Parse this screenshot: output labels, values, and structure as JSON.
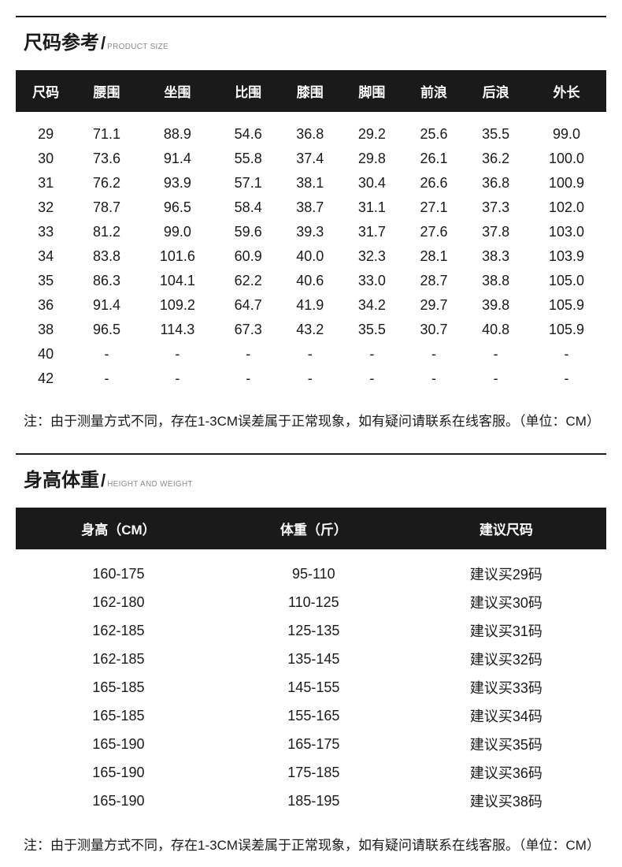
{
  "sizeSection": {
    "titleCn": "尺码参考",
    "titleEn": "PRODUCT SIZE",
    "columns": [
      "尺码",
      "腰围",
      "坐围",
      "比围",
      "膝围",
      "脚围",
      "前浪",
      "后浪",
      "外长"
    ],
    "rows": [
      [
        "29",
        "71.1",
        "88.9",
        "54.6",
        "36.8",
        "29.2",
        "25.6",
        "35.5",
        "99.0"
      ],
      [
        "30",
        "73.6",
        "91.4",
        "55.8",
        "37.4",
        "29.8",
        "26.1",
        "36.2",
        "100.0"
      ],
      [
        "31",
        "76.2",
        "93.9",
        "57.1",
        "38.1",
        "30.4",
        "26.6",
        "36.8",
        "100.9"
      ],
      [
        "32",
        "78.7",
        "96.5",
        "58.4",
        "38.7",
        "31.1",
        "27.1",
        "37.3",
        "102.0"
      ],
      [
        "33",
        "81.2",
        "99.0",
        "59.6",
        "39.3",
        "31.7",
        "27.6",
        "37.8",
        "103.0"
      ],
      [
        "34",
        "83.8",
        "101.6",
        "60.9",
        "40.0",
        "32.3",
        "28.1",
        "38.3",
        "103.9"
      ],
      [
        "35",
        "86.3",
        "104.1",
        "62.2",
        "40.6",
        "33.0",
        "28.7",
        "38.8",
        "105.0"
      ],
      [
        "36",
        "91.4",
        "109.2",
        "64.7",
        "41.9",
        "34.2",
        "29.7",
        "39.8",
        "105.9"
      ],
      [
        "38",
        "96.5",
        "114.3",
        "67.3",
        "43.2",
        "35.5",
        "30.7",
        "40.8",
        "105.9"
      ],
      [
        "40",
        "-",
        "-",
        "-",
        "-",
        "-",
        "-",
        "-",
        "-"
      ],
      [
        "42",
        "-",
        "-",
        "-",
        "-",
        "-",
        "-",
        "-",
        "-"
      ]
    ],
    "note": "注：由于测量方式不同，存在1-3CM误差属于正常现象，如有疑问请联系在线客服。（单位：CM）"
  },
  "hwSection": {
    "titleCn": "身高体重",
    "titleEn": "HEIGHT AND WEIGHT",
    "columns": [
      "身高（CM）",
      "体重（斤）",
      "建议尺码"
    ],
    "rows": [
      [
        "160-175",
        "95-110",
        "建议买29码"
      ],
      [
        "162-180",
        "110-125",
        "建议买30码"
      ],
      [
        "162-185",
        "125-135",
        "建议买31码"
      ],
      [
        "162-185",
        "135-145",
        "建议买32码"
      ],
      [
        "165-185",
        "145-155",
        "建议买33码"
      ],
      [
        "165-185",
        "155-165",
        "建议买34码"
      ],
      [
        "165-190",
        "165-175",
        "建议买35码"
      ],
      [
        "165-190",
        "175-185",
        "建议买36码"
      ],
      [
        "165-190",
        "185-195",
        "建议买38码"
      ]
    ],
    "note": "注：由于测量方式不同，存在1-3CM误差属于正常现象，如有疑问请联系在线客服。（单位：CM）"
  },
  "style": {
    "page_bg": "#ffffff",
    "text_color": "#1a1a1a",
    "header_bg": "#1a1a1a",
    "header_fg": "#ffffff",
    "subtitle_color": "#8a8a8a",
    "divider_color": "#1a1a1a",
    "title_fontsize": 24,
    "header_fontsize": 17,
    "cell_fontsize": 18,
    "note_fontsize": 17,
    "subtitle_fontsize": 10
  }
}
